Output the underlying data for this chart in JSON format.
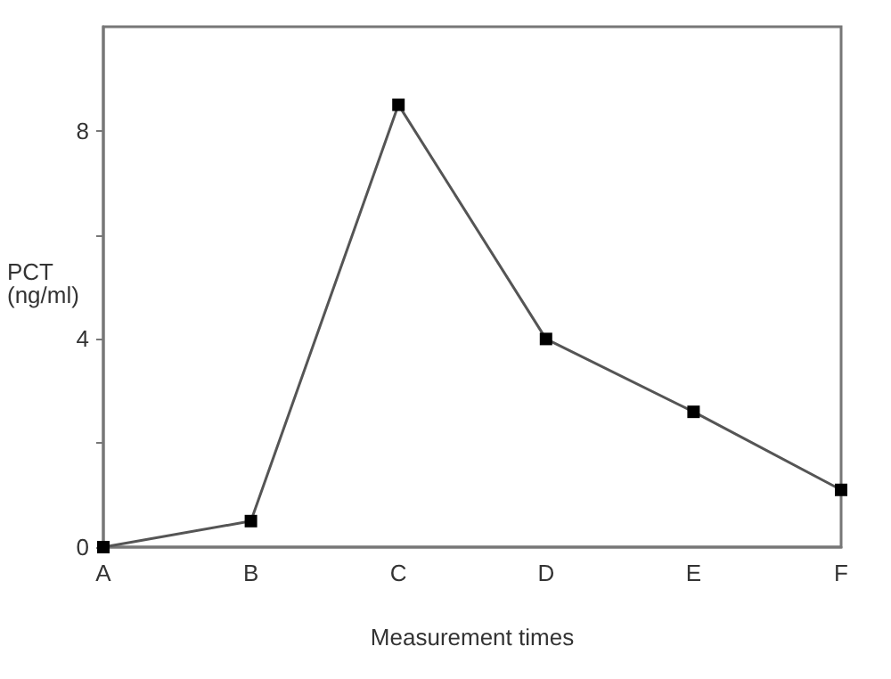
{
  "chart_data": {
    "type": "line",
    "xlabel": "Measurement times",
    "ylabel": "PCT\n(ng/ml)",
    "categories": [
      "A",
      "B",
      "C",
      "D",
      "E",
      "F"
    ],
    "series": [
      {
        "color": "#555555",
        "values": [
          0,
          0.5,
          8.5,
          4.0,
          2.6,
          1.1
        ]
      }
    ],
    "ylim": [
      0,
      10
    ],
    "yticks": [
      0,
      {
        "value": 2,
        "label": null
      },
      4,
      {
        "value": 6,
        "label": null
      },
      8
    ],
    "marker": "square",
    "line_style": "solid",
    "grid": false
  }
}
